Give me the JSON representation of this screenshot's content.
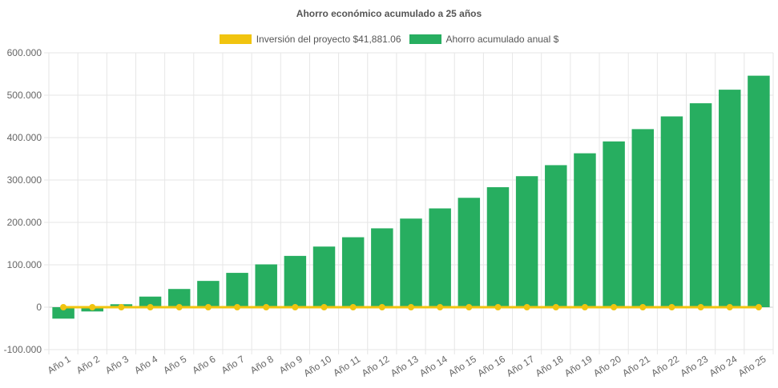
{
  "chart_data": {
    "type": "bar",
    "title": "Ahorro económico acumulado a 25 años",
    "categories": [
      "Año 1",
      "Año 2",
      "Año 3",
      "Año 4",
      "Año 5",
      "Año 6",
      "Año 7",
      "Año 8",
      "Año 9",
      "Año 10",
      "Año 11",
      "Año 12",
      "Año 13",
      "Año 14",
      "Año 15",
      "Año 16",
      "Año 17",
      "Año 18",
      "Año 19",
      "Año 20",
      "Año 21",
      "Año 22",
      "Año 23",
      "Año 24",
      "Año 25"
    ],
    "series": [
      {
        "name": "Inversión del proyecto $41,881.06",
        "type": "line",
        "color": "#f1c40f",
        "values": [
          0,
          0,
          0,
          0,
          0,
          0,
          0,
          0,
          0,
          0,
          0,
          0,
          0,
          0,
          0,
          0,
          0,
          0,
          0,
          0,
          0,
          0,
          0,
          0,
          0
        ]
      },
      {
        "name": "Ahorro acumulado anual $",
        "type": "bar",
        "color": "#27ae60",
        "values": [
          -27000,
          -10000,
          7000,
          25000,
          43000,
          62000,
          81000,
          101000,
          121000,
          143000,
          165000,
          186000,
          209000,
          233000,
          258000,
          283000,
          309000,
          335000,
          363000,
          391000,
          420000,
          450000,
          481000,
          513000,
          546000
        ]
      }
    ],
    "y_ticks": [
      "600.000",
      "500.000",
      "400.000",
      "300.000",
      "200.000",
      "100.000",
      "0",
      "-100.000"
    ],
    "ylim": [
      -100000,
      600000
    ],
    "grid": true,
    "legend_position": "top"
  }
}
